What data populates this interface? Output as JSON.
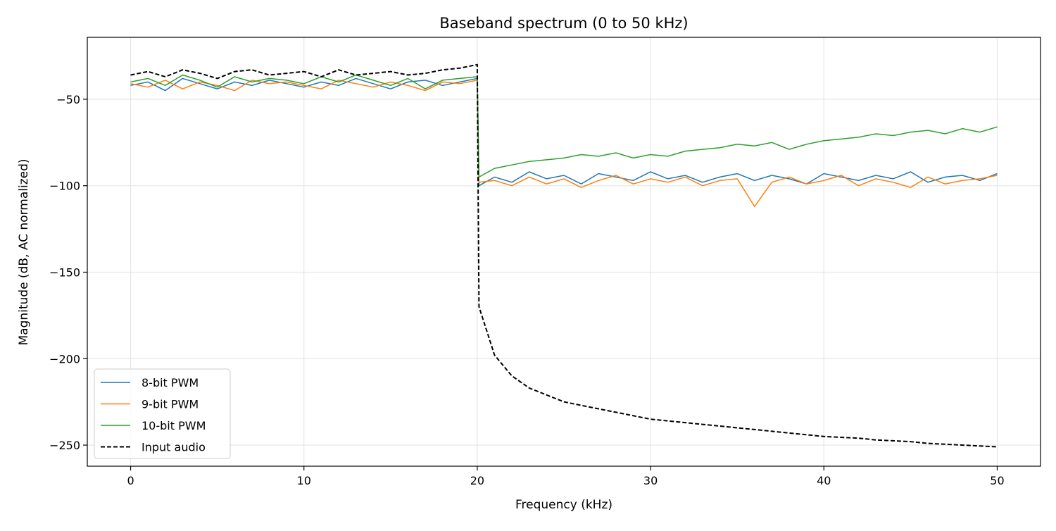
{
  "chart_data": {
    "type": "line",
    "title": "Baseband spectrum (0 to 50 kHz)",
    "xlabel": "Frequency (kHz)",
    "ylabel": "Magnitude (dB, AC normalized)",
    "xlim": [
      -2.5,
      52.5
    ],
    "ylim": [
      -262.2,
      -14.2
    ],
    "xticks": [
      0,
      10,
      20,
      30,
      40,
      50
    ],
    "xtick_labels": [
      "0",
      "10",
      "20",
      "30",
      "40",
      "50"
    ],
    "yticks": [
      -50,
      -100,
      -150,
      -200,
      -250
    ],
    "ytick_labels": [
      "−50",
      "−100",
      "−150",
      "−200",
      "−250"
    ],
    "grid": true,
    "legend_position": "lower-left",
    "x": [
      0,
      1,
      2,
      3,
      4,
      5,
      6,
      7,
      8,
      9,
      10,
      11,
      12,
      13,
      14,
      15,
      16,
      17,
      18,
      19,
      20,
      20.1,
      21,
      22,
      23,
      24,
      25,
      26,
      27,
      28,
      29,
      30,
      31,
      32,
      33,
      34,
      35,
      36,
      37,
      38,
      39,
      40,
      41,
      42,
      43,
      44,
      45,
      46,
      47,
      48,
      49,
      50
    ],
    "series": [
      {
        "name": "8-bit PWM",
        "color": "#1f77b4",
        "style": "solid",
        "values": [
          -42,
          -40,
          -45,
          -38,
          -41,
          -44,
          -40,
          -42,
          -39,
          -41,
          -43,
          -40,
          -42,
          -38,
          -41,
          -44,
          -40,
          -39,
          -42,
          -40,
          -38,
          -100,
          -95,
          -98,
          -92,
          -96,
          -94,
          -99,
          -93,
          -95,
          -97,
          -92,
          -96,
          -94,
          -98,
          -95,
          -93,
          -97,
          -94,
          -96,
          -99,
          -93,
          -95,
          -97,
          -94,
          -96,
          -92,
          -98,
          -95,
          -94,
          -97,
          -93
        ]
      },
      {
        "name": "9-bit PWM",
        "color": "#ff7f0e",
        "style": "solid",
        "values": [
          -41,
          -43,
          -39,
          -44,
          -40,
          -42,
          -45,
          -39,
          -41,
          -40,
          -42,
          -44,
          -39,
          -41,
          -43,
          -40,
          -42,
          -45,
          -40,
          -41,
          -39,
          -98,
          -97,
          -100,
          -95,
          -99,
          -96,
          -101,
          -97,
          -94,
          -99,
          -96,
          -98,
          -95,
          -100,
          -97,
          -96,
          -112,
          -98,
          -95,
          -99,
          -97,
          -94,
          -100,
          -96,
          -98,
          -101,
          -95,
          -99,
          -97,
          -96,
          -94
        ]
      },
      {
        "name": "10-bit PWM",
        "color": "#2ca02c",
        "style": "solid",
        "values": [
          -40,
          -38,
          -42,
          -36,
          -39,
          -43,
          -37,
          -40,
          -38,
          -39,
          -41,
          -37,
          -40,
          -36,
          -39,
          -42,
          -38,
          -44,
          -39,
          -38,
          -37,
          -95,
          -90,
          -88,
          -86,
          -85,
          -84,
          -82,
          -83,
          -81,
          -84,
          -82,
          -83,
          -80,
          -79,
          -78,
          -76,
          -77,
          -75,
          -79,
          -76,
          -74,
          -73,
          -72,
          -70,
          -71,
          -69,
          -68,
          -70,
          -67,
          -69,
          -66
        ]
      },
      {
        "name": "Input audio",
        "color": "#000000",
        "style": "dashed",
        "values": [
          -36,
          -34,
          -37,
          -33,
          -35,
          -38,
          -34,
          -33,
          -36,
          -35,
          -34,
          -37,
          -33,
          -36,
          -35,
          -34,
          -36,
          -35,
          -33,
          -32,
          -30,
          -170,
          -198,
          -210,
          -217,
          -221,
          -225,
          -227,
          -229,
          -231,
          -233,
          -235,
          -236,
          -237,
          -238,
          -239,
          -240,
          -241,
          -242,
          -243,
          -244,
          -245,
          -245.5,
          -246,
          -247,
          -247.5,
          -248,
          -249,
          -249.5,
          -250,
          -250.5,
          -251
        ]
      }
    ]
  }
}
